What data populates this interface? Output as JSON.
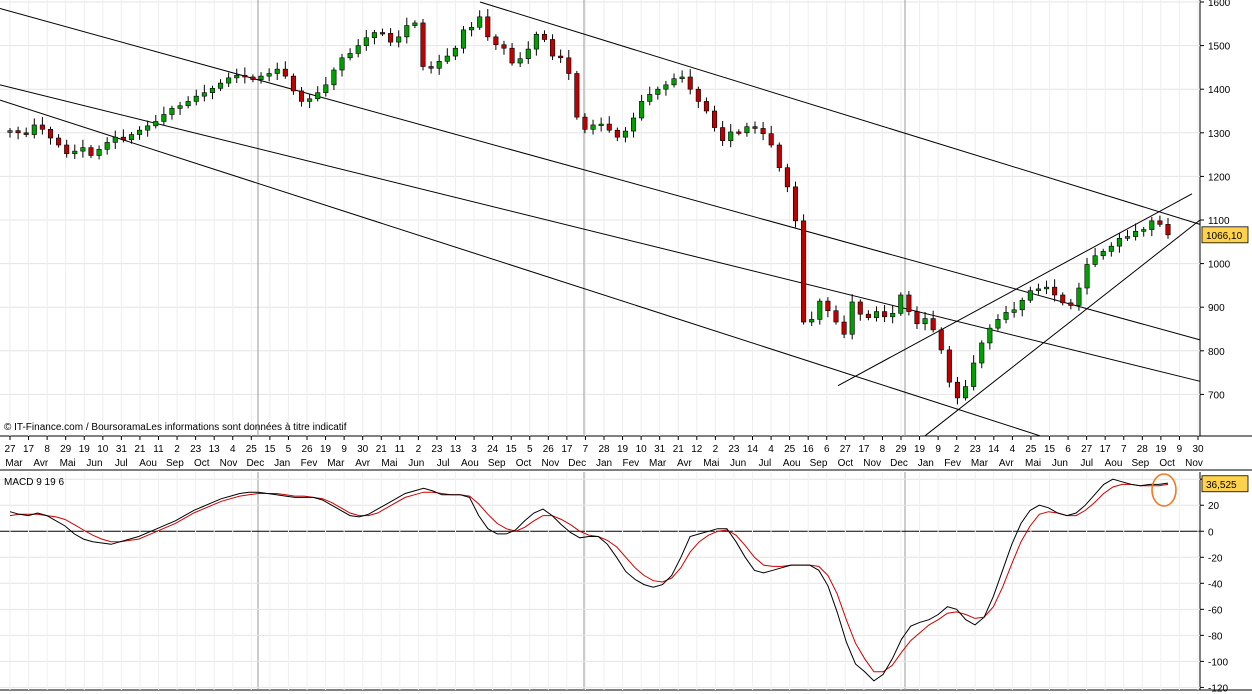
{
  "watermark": "© IT-Finance.com / BoursoramaLes informations sont données à titre indicatif",
  "chart_data": [
    {
      "type": "candlestick",
      "y_axis_side": "right",
      "ylim": [
        600,
        1600
      ],
      "y_ticks": [
        700,
        800,
        900,
        1000,
        1100,
        1200,
        1300,
        1400,
        1500,
        1600
      ],
      "last_price_label": "1066,10",
      "colors": {
        "up": "#00a000",
        "down": "#c00000",
        "last_price_box": "#ffd24d"
      },
      "date_labels": [
        "27",
        "17",
        "8",
        "29",
        "19",
        "10",
        "31",
        "21",
        "11",
        "2",
        "23",
        "13",
        "4",
        "25",
        "15",
        "5",
        "26",
        "19",
        "9",
        "30",
        "21",
        "11",
        "2",
        "23",
        "13",
        "3",
        "24",
        "15",
        "5",
        "26",
        "17",
        "7",
        "28",
        "19",
        "10",
        "31",
        "21",
        "12",
        "2",
        "23",
        "14",
        "4",
        "25",
        "16",
        "6",
        "27",
        "17",
        "8",
        "29",
        "19",
        "9",
        "2",
        "23",
        "14",
        "4",
        "25",
        "15",
        "6",
        "27",
        "17",
        "7",
        "28",
        "19",
        "9",
        "30"
      ],
      "month_labels": [
        "Mar",
        "Avr",
        "Mai",
        "Jun",
        "Jul",
        "Aou",
        "Sep",
        "Oct",
        "Nov",
        "Dec",
        "Jan",
        "Fev",
        "Mar",
        "Avr",
        "Mai",
        "Jun",
        "Jul",
        "Aou",
        "Sep",
        "Oct",
        "Nov",
        "Dec",
        "Jan",
        "Fev",
        "Mar",
        "Avr",
        "Mai",
        "Jun",
        "Jul",
        "Aou",
        "Sep",
        "Oct",
        "Nov",
        "Dec",
        "Jan",
        "Fev",
        "Mar",
        "Avr",
        "Mai",
        "Jun",
        "Jul",
        "Aou",
        "Sep",
        "Oct",
        "Nov"
      ],
      "closes": [
        1305,
        1300,
        1296,
        1318,
        1308,
        1288,
        1272,
        1252,
        1258,
        1266,
        1248,
        1262,
        1278,
        1290,
        1284,
        1296,
        1306,
        1316,
        1326,
        1342,
        1356,
        1362,
        1372,
        1384,
        1392,
        1402,
        1414,
        1426,
        1432,
        1428,
        1422,
        1430,
        1436,
        1446,
        1430,
        1396,
        1372,
        1378,
        1392,
        1410,
        1444,
        1472,
        1482,
        1500,
        1518,
        1530,
        1528,
        1508,
        1520,
        1546,
        1552,
        1452,
        1448,
        1464,
        1476,
        1494,
        1536,
        1542,
        1566,
        1520,
        1502,
        1494,
        1460,
        1470,
        1492,
        1526,
        1514,
        1476,
        1472,
        1436,
        1336,
        1308,
        1318,
        1320,
        1306,
        1290,
        1304,
        1334,
        1372,
        1388,
        1400,
        1410,
        1424,
        1428,
        1400,
        1372,
        1350,
        1312,
        1282,
        1302,
        1300,
        1314,
        1310,
        1298,
        1272,
        1220,
        1176,
        1098,
        866,
        872,
        914,
        892,
        866,
        838,
        912,
        884,
        876,
        890,
        878,
        886,
        928,
        890,
        862,
        874,
        848,
        802,
        728,
        692,
        718,
        772,
        818,
        852,
        872,
        888,
        894,
        916,
        938,
        942,
        946,
        928,
        910,
        904,
        944,
        998,
        1018,
        1028,
        1040,
        1058,
        1062,
        1074,
        1078,
        1098,
        1090,
        1066
      ],
      "macd_yticks": [
        -120,
        -100,
        -80,
        -60,
        -40,
        -20,
        0,
        20,
        40
      ],
      "macd_ylim": [
        -122,
        44
      ],
      "macd_label": "MACD 9 19 6",
      "macd_last_value": "36,525",
      "macd_colors": {
        "macd": "#000000",
        "signal": "#d00000"
      },
      "macd": [
        15,
        13,
        12,
        14,
        12,
        8,
        4,
        -2,
        -6,
        -8,
        -9,
        -10,
        -8,
        -6,
        -4,
        -1,
        2,
        5,
        8,
        12,
        16,
        19,
        22,
        25,
        27,
        29,
        30,
        30,
        29,
        28,
        27,
        26,
        26,
        26,
        24,
        20,
        16,
        12,
        11,
        13,
        17,
        21,
        25,
        29,
        31,
        33,
        31,
        28,
        28,
        28,
        26,
        12,
        2,
        -2,
        -2,
        1,
        8,
        14,
        17,
        12,
        5,
        -1,
        -5,
        -4,
        -4,
        -10,
        -20,
        -31,
        -37,
        -41,
        -43,
        -41,
        -34,
        -20,
        -4,
        -2,
        0,
        2,
        2,
        -8,
        -20,
        -30,
        -32,
        -30,
        -28,
        -26,
        -26,
        -26,
        -30,
        -42,
        -62,
        -85,
        -102,
        -108,
        -115,
        -110,
        -98,
        -83,
        -73,
        -70,
        -68,
        -64,
        -58,
        -60,
        -68,
        -72,
        -66,
        -50,
        -30,
        -10,
        6,
        16,
        20,
        18,
        14,
        12,
        14,
        20,
        28,
        36,
        40,
        38,
        36,
        35,
        36,
        36,
        37
      ],
      "signal": [
        12,
        13,
        13,
        13,
        12,
        11,
        9,
        5,
        1,
        -3,
        -6,
        -8,
        -8,
        -7,
        -6,
        -3,
        0,
        3,
        6,
        10,
        14,
        17,
        20,
        23,
        25,
        27,
        28,
        29,
        29,
        29,
        28,
        27,
        27,
        26,
        25,
        22,
        18,
        14,
        12,
        12,
        14,
        18,
        22,
        26,
        28,
        30,
        30,
        29,
        28,
        28,
        27,
        21,
        13,
        6,
        2,
        0,
        3,
        8,
        12,
        12,
        9,
        5,
        0,
        -3,
        -4,
        -7,
        -12,
        -20,
        -28,
        -34,
        -38,
        -39,
        -36,
        -28,
        -16,
        -8,
        -3,
        0,
        1,
        -3,
        -11,
        -20,
        -26,
        -27,
        -27,
        -26,
        -26,
        -26,
        -27,
        -34,
        -48,
        -68,
        -86,
        -98,
        -108,
        -108,
        -103,
        -93,
        -84,
        -78,
        -72,
        -68,
        -63,
        -62,
        -64,
        -67,
        -66,
        -58,
        -43,
        -25,
        -8,
        4,
        13,
        15,
        14,
        12,
        12,
        16,
        22,
        29,
        34,
        36,
        36,
        35,
        35,
        35,
        36
      ]
    }
  ]
}
